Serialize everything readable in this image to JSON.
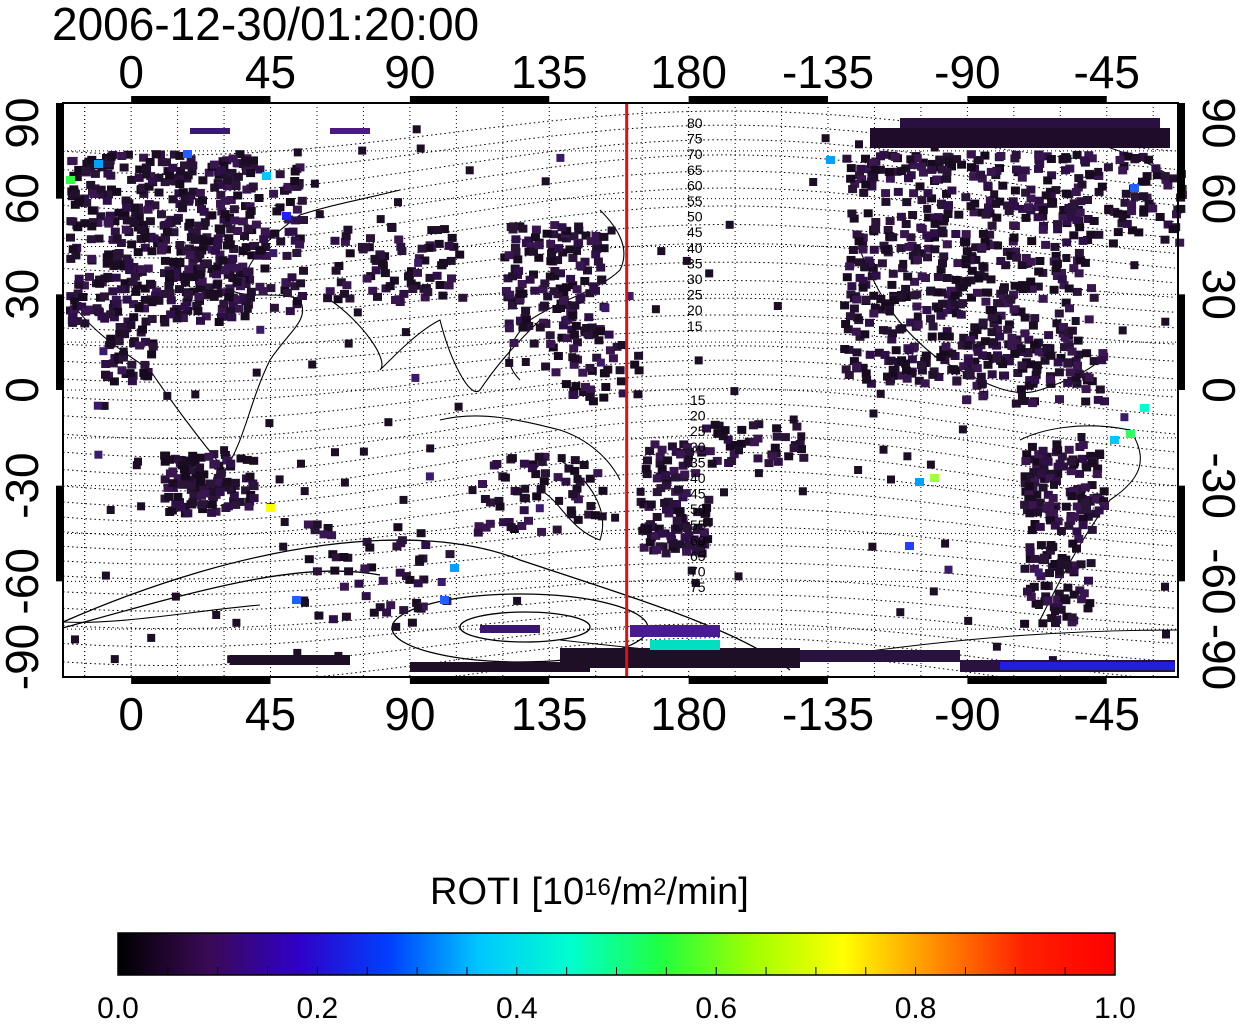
{
  "title": "2006-12-30/01:20:00",
  "map": {
    "top_lon_labels": [
      "0",
      "45",
      "90",
      "135",
      "180",
      "-135",
      "-90",
      "-45"
    ],
    "bottom_lon_labels": [
      "0",
      "45",
      "90",
      "135",
      "180",
      "-135",
      "-90",
      "-45"
    ],
    "left_lat_labels": [
      "90",
      "60",
      "30",
      "0",
      "-30",
      "-60",
      "-90"
    ],
    "right_lat_labels": [
      "90",
      "60",
      "30",
      "0",
      "-30",
      "-60",
      "-90"
    ],
    "meridian_marker": {
      "color": "#dd1111",
      "lon": 160
    },
    "contour_labels_north": [
      "80",
      "75",
      "70",
      "65",
      "60",
      "55",
      "50",
      "45",
      "40",
      "35",
      "30",
      "25",
      "20",
      "15"
    ],
    "contour_labels_south": [
      "15",
      "20",
      "25",
      "30",
      "35",
      "40",
      "45",
      "50",
      "55",
      "60",
      "65",
      "70",
      "75"
    ]
  },
  "colorbar": {
    "title_main": "ROTI  [10",
    "title_sup1": "16",
    "title_mid": "/m",
    "title_sup2": "2",
    "title_end": "/min]",
    "tick_labels": [
      "0.0",
      "0.2",
      "0.4",
      "0.6",
      "0.8",
      "1.0"
    ],
    "min": 0.0,
    "max": 1.0,
    "colors": [
      "#000000",
      "#3a0a55",
      "#3000c8",
      "#0040ff",
      "#00c8ff",
      "#00ffcc",
      "#20ff40",
      "#a0ff00",
      "#ffff00",
      "#ff9000",
      "#ff2000",
      "#ff0000"
    ]
  }
}
